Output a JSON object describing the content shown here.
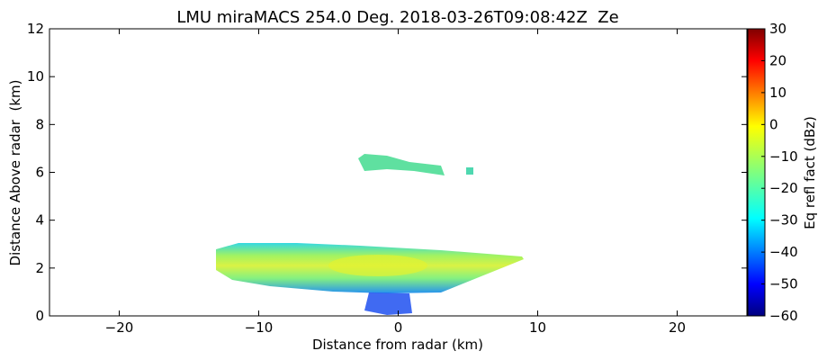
{
  "chart_data": {
    "type": "rhi",
    "title": "LMU miraMACS 254.0 Deg. 2018-03-26T09:08:42Z  Ze",
    "xlabel": "Distance from radar (km)",
    "ylabel": "Distance Above radar  (km)",
    "xlim": [
      -25,
      25
    ],
    "xticks": [
      {
        "value": -20,
        "label": "−20"
      },
      {
        "value": -10,
        "label": "−10"
      },
      0,
      10,
      20
    ],
    "ylim": [
      0,
      12
    ],
    "yticks": [
      0,
      2,
      4,
      6,
      8,
      10,
      12
    ],
    "colorbar": {
      "label": "Eq refl fact (dBz)",
      "lim": [
        -60,
        30
      ],
      "colormap": "jet",
      "ticks": [
        {
          "value": -60,
          "label": "−60"
        },
        {
          "value": -50,
          "label": "−50"
        },
        {
          "value": -40,
          "label": "−40"
        },
        {
          "value": -30,
          "label": "−30"
        },
        {
          "value": -20,
          "label": "−20"
        },
        {
          "value": -10,
          "label": "−10"
        },
        0,
        10,
        20,
        30
      ]
    }
  }
}
